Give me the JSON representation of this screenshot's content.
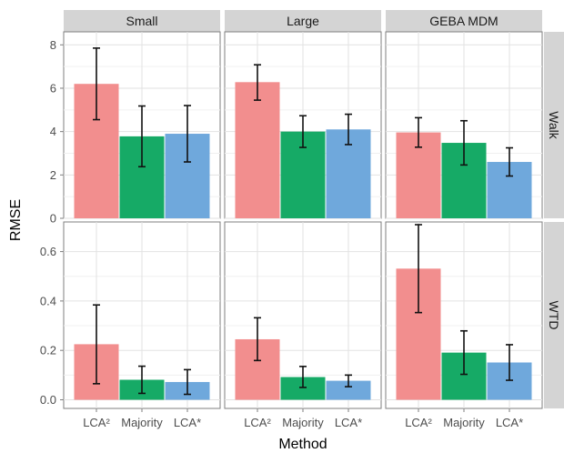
{
  "chart_data": {
    "type": "bar",
    "title": "",
    "xlabel": "Method",
    "ylabel": "RMSE",
    "categories": [
      "LCA²",
      "Majority",
      "LCA*"
    ],
    "colors": [
      "#F28E8E",
      "#16AA66",
      "#6FA8DC"
    ],
    "grid": true,
    "error_bars": true,
    "legend": "none",
    "col_facets": [
      "Small",
      "Large",
      "GEBA MDM"
    ],
    "row_facets": [
      {
        "name": "Walk",
        "ylim": [
          0,
          8.6
        ],
        "yticks": [
          0,
          2,
          4,
          6,
          8
        ],
        "tick_labels": [
          "0",
          "2",
          "4",
          "6",
          "8"
        ],
        "panels": [
          {
            "facet": "Small",
            "values": [
              6.2,
              3.78,
              3.9
            ],
            "error_low": [
              4.55,
              2.38,
              2.6
            ],
            "error_high": [
              7.85,
              5.18,
              5.2
            ]
          },
          {
            "facet": "Large",
            "values": [
              6.28,
              4.0,
              4.1
            ],
            "error_low": [
              5.45,
              3.27,
              3.4
            ],
            "error_high": [
              7.08,
              4.73,
              4.8
            ]
          },
          {
            "facet": "GEBA MDM",
            "values": [
              3.96,
              3.48,
              2.6
            ],
            "error_low": [
              3.28,
              2.46,
              1.95
            ],
            "error_high": [
              4.64,
              4.5,
              3.25
            ]
          }
        ]
      },
      {
        "name": "WTD",
        "ylim": [
          -0.035,
          0.72
        ],
        "yticks": [
          0.0,
          0.2,
          0.4,
          0.6
        ],
        "tick_labels": [
          "0.0",
          "0.2",
          "0.4",
          "0.6"
        ],
        "panels": [
          {
            "facet": "Small",
            "values": [
              0.225,
              0.081,
              0.072
            ],
            "error_low": [
              0.065,
              0.026,
              0.022
            ],
            "error_high": [
              0.384,
              0.136,
              0.122
            ]
          },
          {
            "facet": "Large",
            "values": [
              0.245,
              0.092,
              0.077
            ],
            "error_low": [
              0.159,
              0.05,
              0.053
            ],
            "error_high": [
              0.332,
              0.135,
              0.1
            ]
          },
          {
            "facet": "GEBA MDM",
            "values": [
              0.531,
              0.191,
              0.151
            ],
            "error_low": [
              0.353,
              0.103,
              0.079
            ],
            "error_high": [
              0.709,
              0.279,
              0.223
            ]
          }
        ]
      }
    ]
  }
}
